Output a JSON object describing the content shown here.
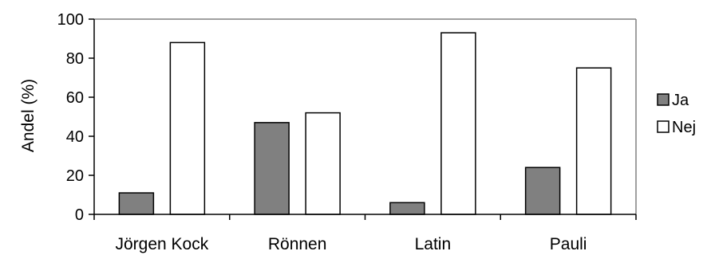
{
  "chart_data": {
    "type": "bar",
    "title": "",
    "xlabel": "",
    "ylabel": "Andel (%)",
    "ylim": [
      0,
      100
    ],
    "yticks": [
      0,
      20,
      40,
      60,
      80,
      100
    ],
    "grid": false,
    "legend_position": "right",
    "categories": [
      "Jörgen Kock",
      "Rönnen",
      "Latin",
      "Pauli"
    ],
    "series": [
      {
        "name": "Ja",
        "color": "#808080",
        "values": [
          11,
          47,
          6,
          24
        ]
      },
      {
        "name": "Nej",
        "color": "#ffffff",
        "values": [
          88,
          52,
          93,
          75
        ]
      }
    ]
  }
}
